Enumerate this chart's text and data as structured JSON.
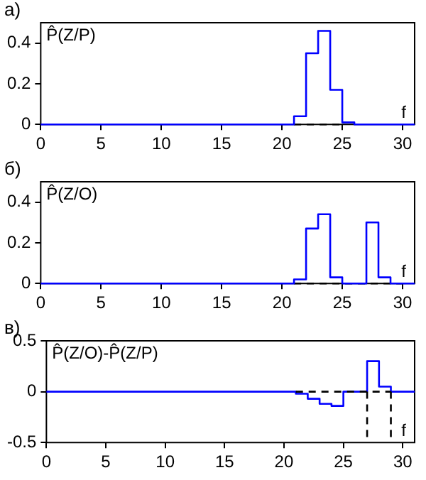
{
  "chart_data": [
    {
      "type": "step",
      "title": "а)",
      "ylabel": "P̂(Z/P)",
      "xlabel": "f",
      "xlim": [
        0,
        31
      ],
      "xticks": [
        0,
        5,
        10,
        15,
        20,
        25,
        30
      ],
      "ylim": [
        0,
        0.5
      ],
      "yticks": [
        0,
        0.2,
        0.4
      ],
      "grid": false,
      "legend": false,
      "series": [
        {
          "color": "#0000ff",
          "x": [
            0,
            21,
            22,
            23,
            24,
            25,
            26,
            31
          ],
          "values": [
            0,
            0.04,
            0.35,
            0.46,
            0.17,
            0.01,
            0,
            0
          ]
        },
        {
          "type": "line",
          "color": "#000000",
          "line_style": "dashed",
          "x": [
            21,
            25
          ],
          "values": [
            0,
            0
          ]
        }
      ]
    },
    {
      "type": "step",
      "title": "б)",
      "ylabel": "P̂(Z/O)",
      "xlabel": "f",
      "xlim": [
        0,
        31
      ],
      "xticks": [
        0,
        5,
        10,
        15,
        20,
        25,
        30
      ],
      "ylim": [
        0,
        0.5
      ],
      "yticks": [
        0,
        0.2,
        0.4
      ],
      "grid": false,
      "legend": false,
      "series": [
        {
          "color": "#0000ff",
          "x": [
            0,
            21,
            22,
            23,
            24,
            25,
            27,
            28,
            29,
            31
          ],
          "values": [
            0,
            0.02,
            0.27,
            0.34,
            0.03,
            0,
            0.3,
            0.03,
            0,
            0
          ]
        },
        {
          "type": "line",
          "color": "#000000",
          "line_style": "dashed",
          "x": [
            21,
            30
          ],
          "values": [
            0,
            0
          ]
        }
      ]
    },
    {
      "type": "step",
      "title": "в)",
      "ylabel": "P̂(Z/O)-P̂(Z/P)",
      "xlabel": "f",
      "xlim": [
        0,
        31
      ],
      "xticks": [
        0,
        5,
        10,
        15,
        20,
        25,
        30
      ],
      "ylim": [
        -0.5,
        0.5
      ],
      "yticks": [
        -0.5,
        0,
        0.5
      ],
      "grid": false,
      "legend": false,
      "series": [
        {
          "type": "line",
          "color": "#000000",
          "line_style": "dashed",
          "x": [
            21,
            29
          ],
          "values": [
            0,
            0
          ]
        },
        {
          "type": "line",
          "color": "#000000",
          "line_style": "dashed",
          "x": [
            27,
            27
          ],
          "values": [
            0,
            -0.5
          ]
        },
        {
          "type": "line",
          "color": "#000000",
          "line_style": "dashed",
          "x": [
            29,
            29
          ],
          "values": [
            0,
            -0.5
          ]
        },
        {
          "color": "#0000ff",
          "x": [
            0,
            21,
            22,
            23,
            24,
            25,
            27,
            28,
            29,
            31
          ],
          "values": [
            0,
            -0.02,
            -0.07,
            -0.12,
            -0.14,
            0,
            0.3,
            0.05,
            0,
            0
          ]
        }
      ]
    }
  ]
}
